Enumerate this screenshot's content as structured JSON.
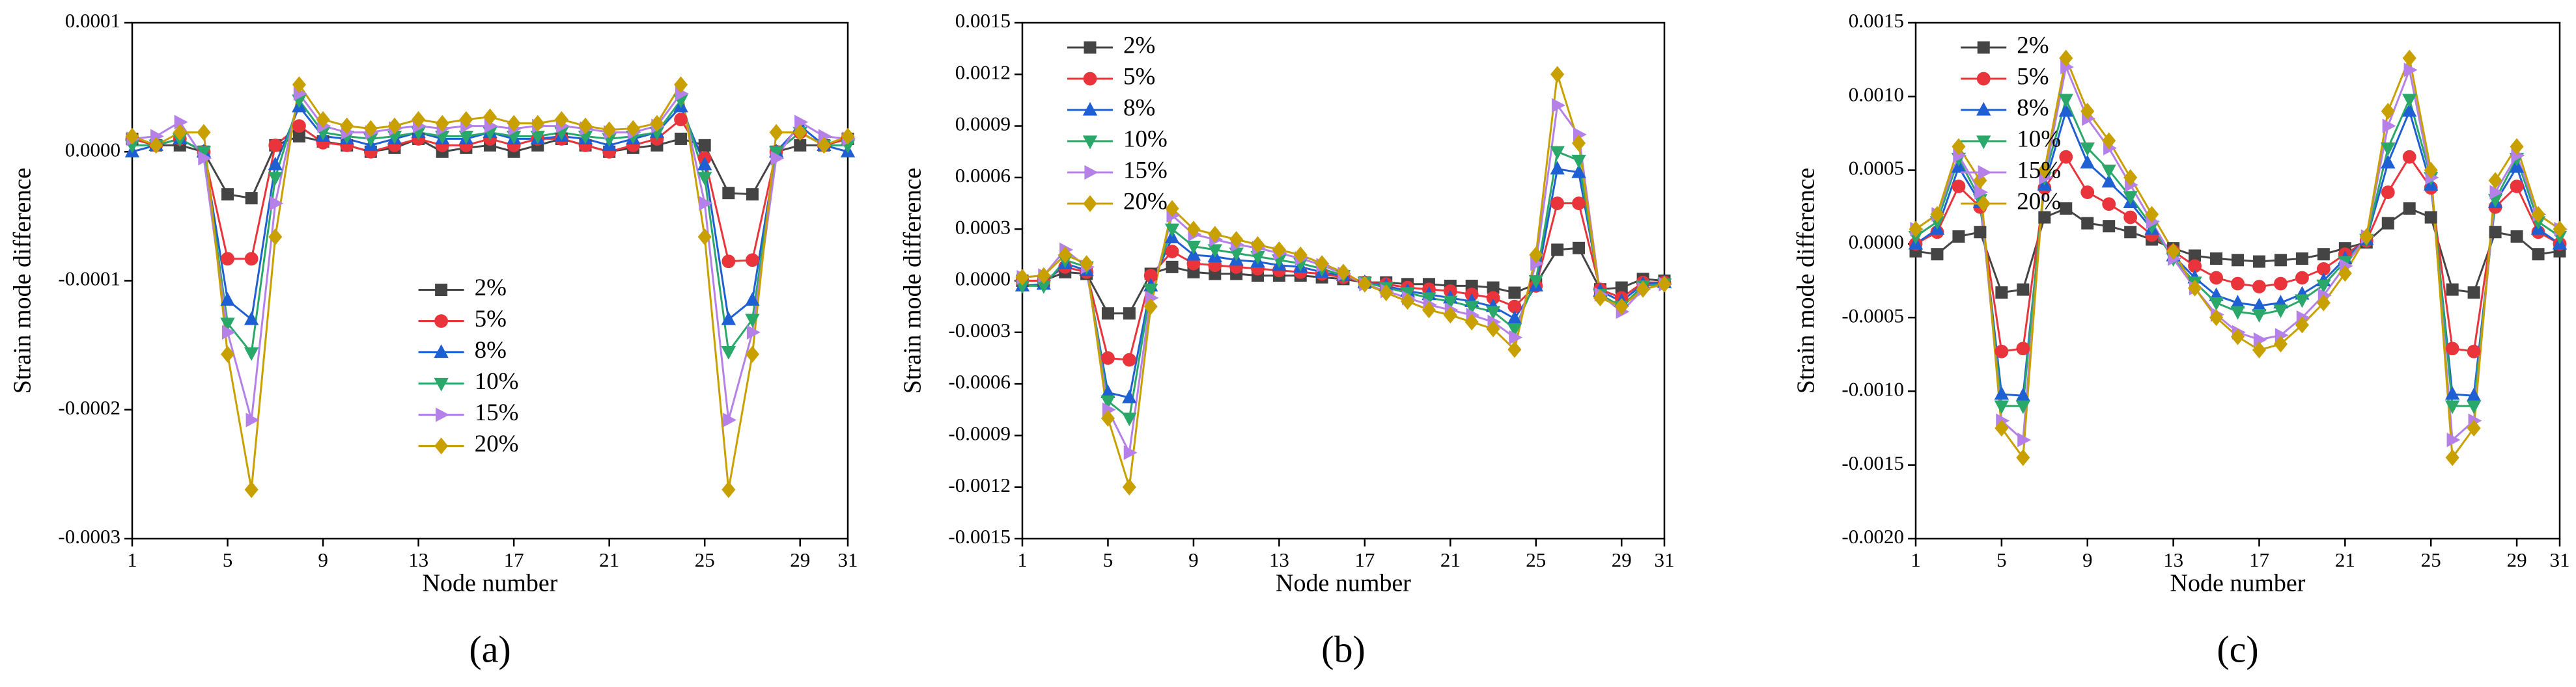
{
  "chart_data": [
    {
      "type": "line",
      "label": "(a)",
      "xlabel": "Node number",
      "ylabel": "Strain mode difference",
      "legend": "center",
      "x": [
        1,
        2,
        3,
        4,
        5,
        6,
        7,
        8,
        9,
        10,
        11,
        12,
        13,
        14,
        15,
        16,
        17,
        18,
        19,
        20,
        21,
        22,
        23,
        24,
        25,
        26,
        27,
        28,
        29,
        30,
        31
      ],
      "xlim": [
        1,
        31
      ],
      "xticks": [
        1,
        5,
        9,
        13,
        17,
        21,
        25,
        29,
        31
      ],
      "ylim": [
        -0.0003,
        0.0001
      ],
      "yticks": [
        -0.0003,
        -0.0002,
        -0.0001,
        {
          "value": 0,
          "label": "0.0000"
        },
        0.0001
      ],
      "series": [
        {
          "name": "2%",
          "color": "#444444",
          "marker": "square",
          "values": [
            1e-05,
            5e-06,
            5e-06,
            0,
            -3.3e-05,
            -3.6e-05,
            5e-06,
            1.2e-05,
            8e-06,
            5e-06,
            0,
            3e-06,
            1e-05,
            0,
            3e-06,
            5e-06,
            0,
            5e-06,
            1e-05,
            5e-06,
            0,
            3e-06,
            5e-06,
            1e-05,
            5e-06,
            -3.2e-05,
            -3.3e-05,
            0,
            5e-06,
            5e-06,
            1e-05
          ]
        },
        {
          "name": "5%",
          "color": "#e8343a",
          "marker": "circle",
          "values": [
            1e-05,
            5e-06,
            1e-05,
            0,
            -8.3e-05,
            -8.3e-05,
            5e-06,
            2e-05,
            7e-06,
            5e-06,
            0,
            5e-06,
            1e-05,
            5e-06,
            5e-06,
            1e-05,
            5e-06,
            1e-05,
            1e-05,
            5e-06,
            0,
            5e-06,
            1e-05,
            2.5e-05,
            -5e-06,
            -8.5e-05,
            -8.4e-05,
            0,
            1.5e-05,
            5e-06,
            1e-05
          ]
        },
        {
          "name": "8%",
          "color": "#1f5fd4",
          "marker": "tri-up",
          "values": [
            0,
            5e-06,
            1e-05,
            0,
            -0.000115,
            -0.00013,
            -1e-05,
            3.5e-05,
            1.2e-05,
            1e-05,
            5e-06,
            1e-05,
            1.5e-05,
            1e-05,
            1e-05,
            1.5e-05,
            1e-05,
            1e-05,
            1.2e-05,
            1e-05,
            5e-06,
            1e-05,
            1.5e-05,
            3.5e-05,
            -1e-05,
            -0.00013,
            -0.000115,
            0,
            2e-05,
            5e-06,
            0
          ]
        },
        {
          "name": "10%",
          "color": "#2aa86a",
          "marker": "tri-down",
          "values": [
            5e-06,
            5e-06,
            1e-05,
            0,
            -0.000133,
            -0.000156,
            -2e-05,
            4e-05,
            1.5e-05,
            1.2e-05,
            1e-05,
            1.2e-05,
            1.5e-05,
            1.2e-05,
            1.2e-05,
            1.5e-05,
            1.2e-05,
            1.2e-05,
            1.5e-05,
            1.2e-05,
            1e-05,
            1.2e-05,
            1.5e-05,
            4e-05,
            -2e-05,
            -0.000155,
            -0.00013,
            0,
            1.5e-05,
            5e-06,
            5e-06
          ]
        },
        {
          "name": "15%",
          "color": "#b580e8",
          "marker": "tri-right",
          "values": [
            1e-05,
            1.2e-05,
            2.3e-05,
            -5e-06,
            -0.00014,
            -0.000208,
            -4e-05,
            4.5e-05,
            2e-05,
            1.5e-05,
            1.5e-05,
            1.8e-05,
            2e-05,
            1.8e-05,
            2e-05,
            2e-05,
            1.8e-05,
            2e-05,
            2e-05,
            1.8e-05,
            1.5e-05,
            1.5e-05,
            2e-05,
            4.5e-05,
            -4e-05,
            -0.000208,
            -0.00014,
            -5e-06,
            2.3e-05,
            1.2e-05,
            1e-05
          ]
        },
        {
          "name": "20%",
          "color": "#c8a000",
          "marker": "diamond",
          "values": [
            1.2e-05,
            5e-06,
            1.5e-05,
            1.5e-05,
            -0.000157,
            -0.000262,
            -6.6e-05,
            5.2e-05,
            2.5e-05,
            2e-05,
            1.8e-05,
            2e-05,
            2.5e-05,
            2.2e-05,
            2.5e-05,
            2.7e-05,
            2.2e-05,
            2.2e-05,
            2.5e-05,
            2e-05,
            1.7e-05,
            1.8e-05,
            2.2e-05,
            5.2e-05,
            -6.6e-05,
            -0.000262,
            -0.000157,
            1.5e-05,
            1.5e-05,
            5e-06,
            1.2e-05
          ]
        }
      ]
    },
    {
      "type": "line",
      "label": "(b)",
      "xlabel": "Node number",
      "ylabel": "Strain mode difference",
      "legend": "upper left",
      "x": [
        1,
        2,
        3,
        4,
        5,
        6,
        7,
        8,
        9,
        10,
        11,
        12,
        13,
        14,
        15,
        16,
        17,
        18,
        19,
        20,
        21,
        22,
        23,
        24,
        25,
        26,
        27,
        28,
        29,
        30,
        31
      ],
      "xlim": [
        1,
        31
      ],
      "xticks": [
        1,
        5,
        9,
        13,
        17,
        21,
        25,
        29,
        31
      ],
      "ylim": [
        -0.0015,
        0.0015
      ],
      "yticks": [
        -0.0015,
        -0.0012,
        -0.0009,
        -0.0006,
        -0.0003,
        {
          "value": 0,
          "label": "0.0000"
        },
        0.0003,
        0.0006,
        0.0009,
        0.0012,
        0.0015
      ],
      "series": [
        {
          "name": "2%",
          "color": "#444444",
          "marker": "square",
          "values": [
            0,
            0,
            5e-05,
            4e-05,
            -0.00019,
            -0.00019,
            4e-05,
            8e-05,
            5e-05,
            4e-05,
            4e-05,
            3e-05,
            3e-05,
            3e-05,
            2e-05,
            1e-05,
            -1e-05,
            -1e-05,
            -2e-05,
            -2e-05,
            -3e-05,
            -3e-05,
            -4e-05,
            -7e-05,
            -2e-05,
            0.00018,
            0.00019,
            -5e-05,
            -4e-05,
            1e-05,
            0
          ]
        },
        {
          "name": "5%",
          "color": "#e8343a",
          "marker": "circle",
          "values": [
            0,
            0,
            8e-05,
            5e-05,
            -0.00045,
            -0.00046,
            3e-05,
            0.00017,
            0.0001,
            9e-05,
            8e-05,
            7e-05,
            6e-05,
            5e-05,
            4e-05,
            2e-05,
            -1e-05,
            -2e-05,
            -4e-05,
            -5e-05,
            -6e-05,
            -8e-05,
            -0.0001,
            -0.00015,
            -3e-05,
            0.00045,
            0.00045,
            -5e-05,
            -0.0001,
            -1e-05,
            -1e-05
          ]
        },
        {
          "name": "8%",
          "color": "#1f5fd4",
          "marker": "tri-up",
          "values": [
            -3e-05,
            -2e-05,
            0.0001,
            6e-05,
            -0.00065,
            -0.00068,
            -3e-05,
            0.00025,
            0.00015,
            0.00014,
            0.00012,
            0.00011,
            9e-05,
            8e-05,
            5e-05,
            3e-05,
            -1e-05,
            -3e-05,
            -6e-05,
            -8e-05,
            -0.0001,
            -0.00012,
            -0.00015,
            -0.00022,
            -3e-05,
            0.00065,
            0.00063,
            -6e-05,
            -0.00012,
            -2e-05,
            -1e-05
          ]
        },
        {
          "name": "10%",
          "color": "#2aa86a",
          "marker": "tri-down",
          "values": [
            -3e-05,
            -3e-05,
            0.00012,
            8e-05,
            -0.0007,
            -0.0008,
            -5e-05,
            0.0003,
            0.0002,
            0.00018,
            0.00016,
            0.00014,
            0.00012,
            0.0001,
            7e-05,
            3e-05,
            -1e-05,
            -4e-05,
            -7e-05,
            -0.0001,
            -0.00012,
            -0.00015,
            -0.00018,
            -0.00028,
            0,
            0.00075,
            0.0007,
            -8e-05,
            -0.00015,
            -3e-05,
            -2e-05
          ]
        },
        {
          "name": "15%",
          "color": "#b580e8",
          "marker": "tri-right",
          "values": [
            2e-05,
            3e-05,
            0.00018,
            8e-05,
            -0.00075,
            -0.001,
            -0.0001,
            0.00038,
            0.00027,
            0.00024,
            0.00021,
            0.00019,
            0.00016,
            0.00013,
            9e-05,
            4e-05,
            -2e-05,
            -6e-05,
            -0.0001,
            -0.00014,
            -0.00017,
            -0.0002,
            -0.00024,
            -0.00033,
            0.0001,
            0.00102,
            0.00085,
            -8e-05,
            -0.00018,
            -5e-05,
            -2e-05
          ]
        },
        {
          "name": "20%",
          "color": "#c8a000",
          "marker": "diamond",
          "values": [
            2e-05,
            3e-05,
            0.00015,
            0.0001,
            -0.0008,
            -0.0012,
            -0.00015,
            0.00042,
            0.0003,
            0.00027,
            0.00024,
            0.00021,
            0.00018,
            0.00015,
            0.0001,
            5e-05,
            -2e-05,
            -7e-05,
            -0.00012,
            -0.00017,
            -0.0002,
            -0.00024,
            -0.00028,
            -0.0004,
            0.00015,
            0.0012,
            0.0008,
            -0.0001,
            -0.00015,
            -5e-05,
            -2e-05
          ]
        }
      ]
    },
    {
      "type": "line",
      "label": "(c)",
      "xlabel": "Node number",
      "ylabel": "Strain mode difference",
      "legend": "upper left",
      "x": [
        1,
        2,
        3,
        4,
        5,
        6,
        7,
        8,
        9,
        10,
        11,
        12,
        13,
        14,
        15,
        16,
        17,
        18,
        19,
        20,
        21,
        22,
        23,
        24,
        25,
        26,
        27,
        28,
        29,
        30,
        31
      ],
      "xlim": [
        1,
        31
      ],
      "xticks": [
        1,
        5,
        9,
        13,
        17,
        21,
        25,
        29,
        31
      ],
      "ylim": [
        -0.002,
        0.0015
      ],
      "yticks": [
        {
          "value": -0.002,
          "label": "-0.0020"
        },
        -0.0015,
        {
          "value": -0.001,
          "label": "-0.0010"
        },
        -0.0005,
        {
          "value": 0,
          "label": "0.0000"
        },
        0.0005,
        {
          "value": 0.001,
          "label": "0.0010"
        },
        0.0015
      ],
      "series": [
        {
          "name": "2%",
          "color": "#444444",
          "marker": "square",
          "values": [
            -5e-05,
            -7e-05,
            5e-05,
            8e-05,
            -0.00033,
            -0.00031,
            0.00018,
            0.00024,
            0.00014,
            0.00012,
            8e-05,
            3e-05,
            -3e-05,
            -8e-05,
            -0.0001,
            -0.00011,
            -0.00012,
            -0.00011,
            -0.0001,
            -7e-05,
            -3e-05,
            1e-05,
            0.00014,
            0.00024,
            0.00018,
            -0.00031,
            -0.00033,
            8e-05,
            5e-05,
            -7e-05,
            -5e-05
          ]
        },
        {
          "name": "5%",
          "color": "#e8343a",
          "marker": "circle",
          "values": [
            0,
            8e-05,
            0.00039,
            0.00025,
            -0.00073,
            -0.00071,
            0.00038,
            0.00059,
            0.00035,
            0.00027,
            0.00018,
            6e-05,
            -5e-05,
            -0.00015,
            -0.00023,
            -0.00027,
            -0.00029,
            -0.00027,
            -0.00023,
            -0.00017,
            -7e-05,
            2e-05,
            0.00035,
            0.00059,
            0.00038,
            -0.00071,
            -0.00073,
            0.00025,
            0.00039,
            8e-05,
            0
          ]
        },
        {
          "name": "8%",
          "color": "#1f5fd4",
          "marker": "tri-up",
          "values": [
            0,
            0.0001,
            0.00052,
            0.00028,
            -0.00102,
            -0.00103,
            0.0004,
            0.0009,
            0.00055,
            0.00042,
            0.00028,
            0.0001,
            -8e-05,
            -0.00023,
            -0.00035,
            -0.0004,
            -0.00042,
            -0.0004,
            -0.00034,
            -0.00025,
            -0.0001,
            3e-05,
            0.00055,
            0.0009,
            0.0004,
            -0.00102,
            -0.00103,
            0.00028,
            0.00052,
            0.0001,
            0
          ]
        },
        {
          "name": "10%",
          "color": "#2aa86a",
          "marker": "tri-down",
          "values": [
            5e-05,
            0.00015,
            0.00058,
            0.0003,
            -0.0011,
            -0.0011,
            0.00045,
            0.00098,
            0.00065,
            0.0005,
            0.00032,
            0.00012,
            -0.0001,
            -0.00026,
            -0.0004,
            -0.00046,
            -0.00048,
            -0.00045,
            -0.00038,
            -0.00028,
            -0.00012,
            3e-05,
            0.00065,
            0.00098,
            0.00045,
            -0.0011,
            -0.0011,
            0.0003,
            0.00058,
            0.00015,
            5e-05
          ]
        },
        {
          "name": "15%",
          "color": "#b580e8",
          "marker": "tri-right",
          "values": [
            0.0001,
            0.0002,
            0.0006,
            0.00035,
            -0.0012,
            -0.00133,
            0.00045,
            0.0012,
            0.00085,
            0.00065,
            0.0004,
            0.00015,
            -0.0001,
            -0.0003,
            -0.00048,
            -0.0006,
            -0.00065,
            -0.00062,
            -0.0005,
            -0.00035,
            -0.00015,
            5e-05,
            0.0008,
            0.00118,
            0.00045,
            -0.00133,
            -0.0012,
            0.00035,
            0.0006,
            0.0002,
            0.0001
          ]
        },
        {
          "name": "20%",
          "color": "#c8a000",
          "marker": "diamond",
          "values": [
            0.0001,
            0.0002,
            0.00066,
            0.00043,
            -0.00125,
            -0.00145,
            0.0005,
            0.00126,
            0.0009,
            0.0007,
            0.00045,
            0.0002,
            -5e-05,
            -0.0003,
            -0.0005,
            -0.00063,
            -0.00072,
            -0.00068,
            -0.00055,
            -0.0004,
            -0.0002,
            5e-05,
            0.0009,
            0.00126,
            0.0005,
            -0.00145,
            -0.00125,
            0.00043,
            0.00066,
            0.0002,
            0.0001
          ]
        }
      ]
    }
  ]
}
